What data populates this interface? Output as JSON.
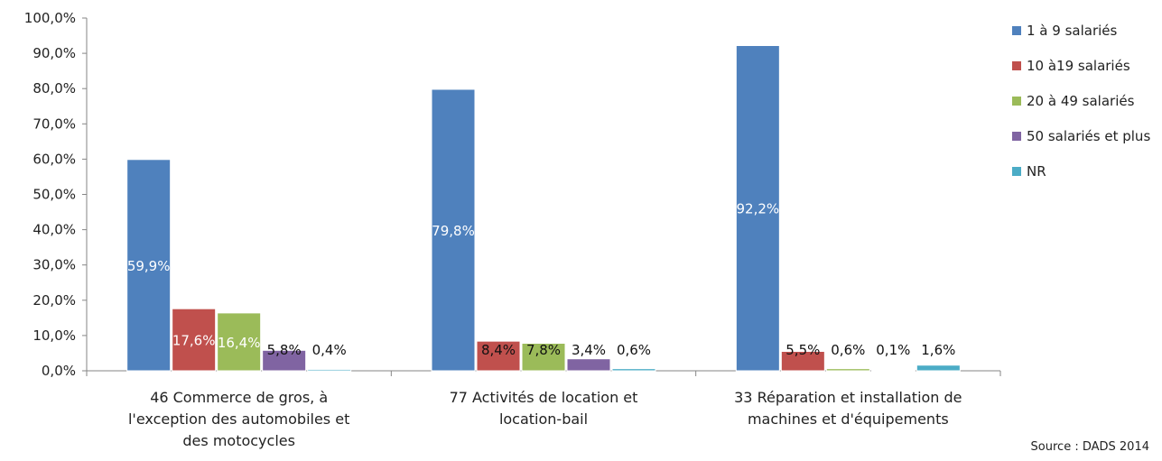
{
  "chart_data": {
    "type": "bar",
    "categories": [
      [
        "46 Commerce de gros, à",
        "l'exception des automobiles et",
        "des motocycles"
      ],
      [
        "77 Activités de location et",
        "location-bail"
      ],
      [
        "33 Réparation et installation de",
        "machines et d'équipements"
      ]
    ],
    "series": [
      {
        "name": "1 à 9 salariés",
        "values": [
          59.9,
          79.8,
          92.2
        ],
        "labels": [
          "59,9%",
          "79,8%",
          "92,2%"
        ],
        "color": "#4F81BD"
      },
      {
        "name": "10 à19 salariés",
        "values": [
          17.6,
          8.4,
          5.5
        ],
        "labels": [
          "17,6%",
          "8,4%",
          "5,5%"
        ],
        "color": "#C0504D"
      },
      {
        "name": "20 à 49 salariés",
        "values": [
          16.4,
          7.8,
          0.6
        ],
        "labels": [
          "16,4%",
          "7,8%",
          "0,6%"
        ],
        "color": "#9BBB59"
      },
      {
        "name": "50 salariés et plus",
        "values": [
          5.8,
          3.4,
          0.1
        ],
        "labels": [
          "5,8%",
          "3,4%",
          "0,1%"
        ],
        "color": "#8064A2"
      },
      {
        "name": "NR",
        "values": [
          0.4,
          0.6,
          1.6
        ],
        "labels": [
          "0,4%",
          "0,6%",
          "1,6%"
        ],
        "color": "#4BACC6"
      }
    ],
    "yticks": [
      "0,0%",
      "10,0%",
      "20,0%",
      "30,0%",
      "40,0%",
      "50,0%",
      "60,0%",
      "70,0%",
      "80,0%",
      "90,0%",
      "100,0%"
    ],
    "ylim": [
      0,
      100
    ],
    "grid": false,
    "legend": "right"
  },
  "source": "Source : DADS 2014"
}
